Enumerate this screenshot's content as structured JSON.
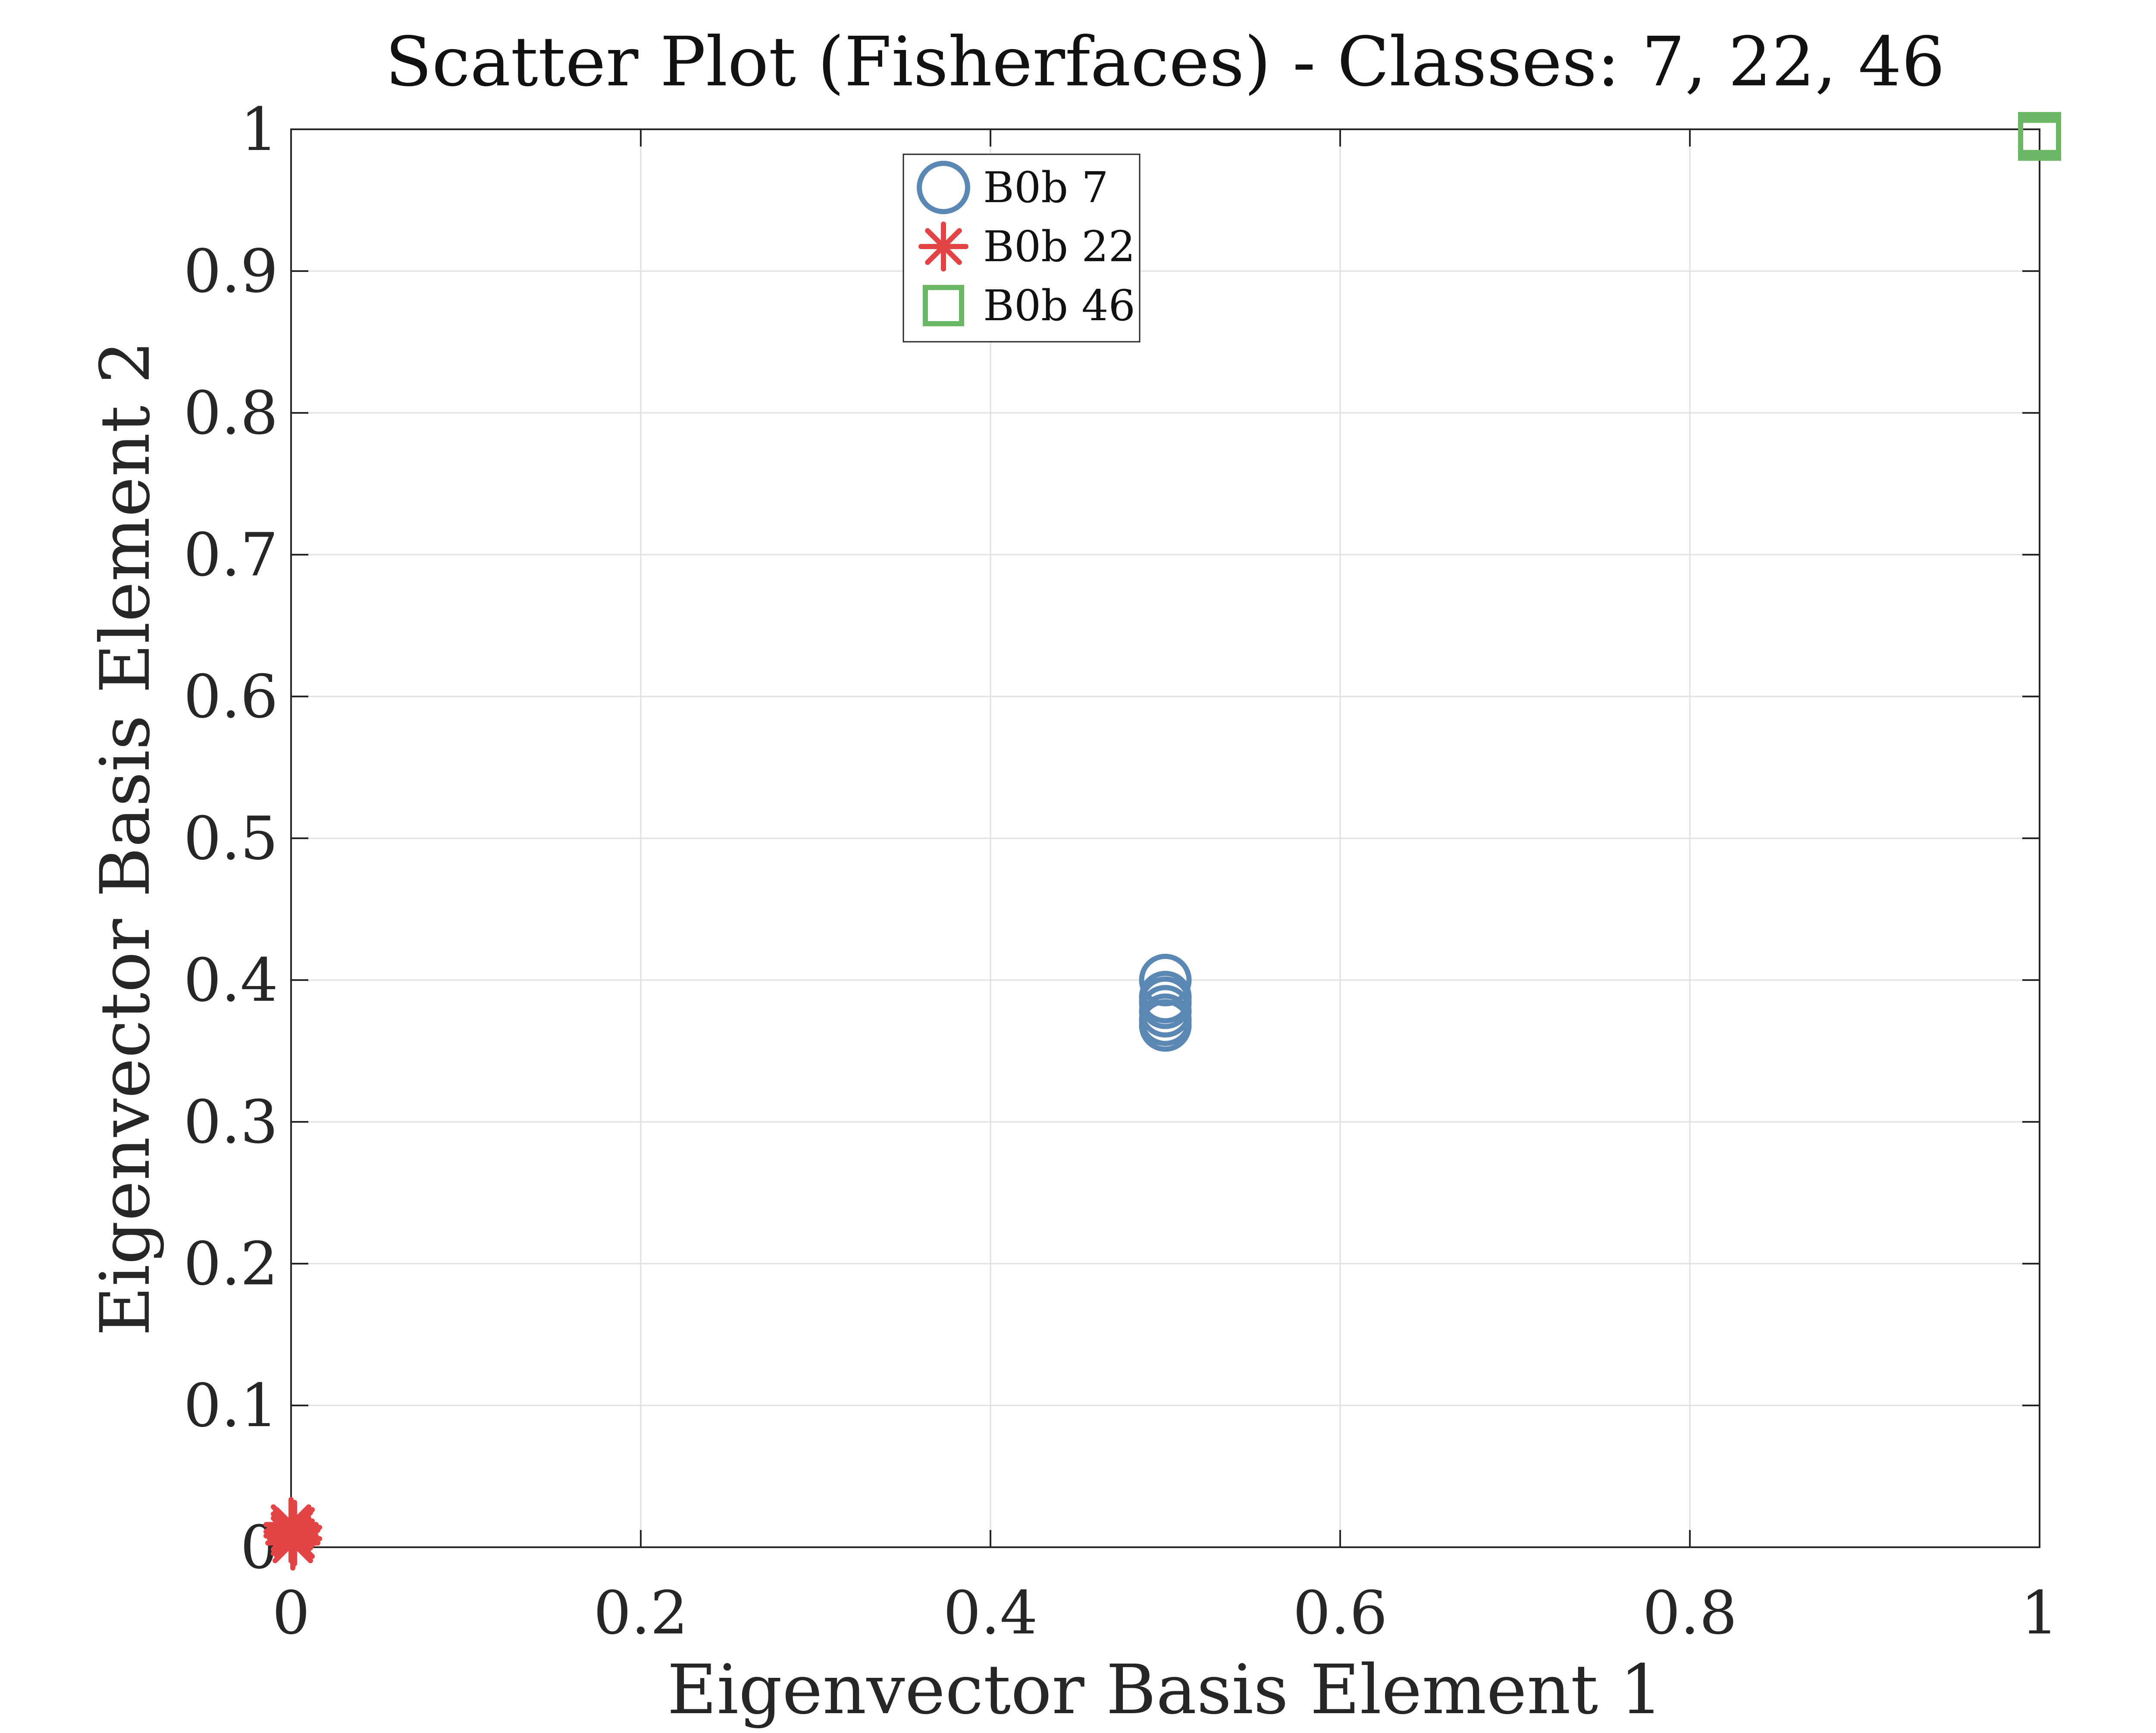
{
  "chart_data": {
    "type": "scatter",
    "title": "Scatter Plot (Fisherfaces) - Classes: 7, 22, 46",
    "xlabel": "Eigenvector Basis Element 1",
    "ylabel": "Eigenvector Basis Element 2",
    "xlim": [
      0,
      1
    ],
    "ylim": [
      0,
      1
    ],
    "xticks": [
      0,
      0.2,
      0.4,
      0.6,
      0.8,
      1
    ],
    "yticks": [
      0,
      0.1,
      0.2,
      0.3,
      0.4,
      0.5,
      0.6,
      0.7,
      0.8,
      0.9,
      1
    ],
    "xtick_labels": [
      "0",
      "0.2",
      "0.4",
      "0.6",
      "0.8",
      "1"
    ],
    "ytick_labels": [
      "0",
      "0.1",
      "0.2",
      "0.3",
      "0.4",
      "0.5",
      "0.6",
      "0.7",
      "0.8",
      "0.9",
      "1"
    ],
    "grid": true,
    "legend_position": "top-center",
    "series": [
      {
        "name": "B0b 7",
        "marker": "circle",
        "color": "#5b87b4",
        "x": [
          0.5,
          0.5,
          0.5,
          0.5,
          0.5,
          0.5
        ],
        "y": [
          0.4,
          0.388,
          0.384,
          0.378,
          0.372,
          0.368
        ]
      },
      {
        "name": "B0b 22",
        "marker": "asterisk",
        "color": "#e34446",
        "x": [
          0.0,
          0.001,
          0.0,
          0.002,
          0.001,
          0.0,
          0.002
        ],
        "y": [
          0.016,
          0.012,
          0.008,
          0.006,
          0.003,
          0.011,
          0.014
        ]
      },
      {
        "name": "B0b 46",
        "marker": "square",
        "color": "#6ab865",
        "x": [
          1.0,
          1.0,
          1.0
        ],
        "y": [
          0.997,
          0.995,
          0.993
        ]
      }
    ]
  }
}
